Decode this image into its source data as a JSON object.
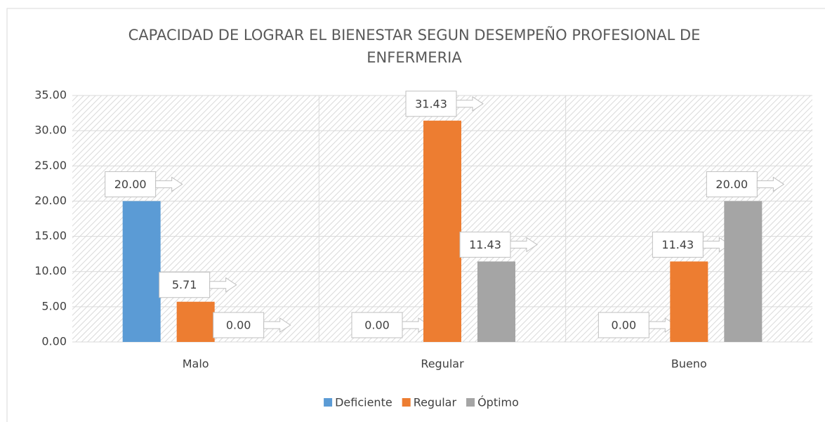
{
  "chart_data": {
    "type": "bar",
    "title": "CAPACIDAD DE LOGRAR EL BIENESTAR SEGUN DESEMPEÑO PROFESIONAL DE ENFERMERIA",
    "categories": [
      "Malo",
      "Regular",
      "Bueno"
    ],
    "series": [
      {
        "name": "Deficiente",
        "color": "#5b9bd5",
        "values": [
          20,
          0,
          0
        ],
        "value_labels": [
          "20.00",
          "0.00",
          "0.00"
        ]
      },
      {
        "name": "Regular",
        "color": "#ed7d31",
        "values": [
          5.71,
          31.43,
          11.43
        ],
        "value_labels": [
          "5.71",
          "31.43",
          "11.43"
        ]
      },
      {
        "name": "Óptimo",
        "color": "#a5a5a5",
        "values": [
          0,
          11.43,
          20
        ],
        "value_labels": [
          "0.00",
          "11.43",
          "20.00"
        ]
      }
    ],
    "ylim": [
      0,
      35
    ],
    "yticks": [
      {
        "value": 0,
        "label": "0.00"
      },
      {
        "value": 5,
        "label": "5.00"
      },
      {
        "value": 10,
        "label": "10.00"
      },
      {
        "value": 15,
        "label": "15.00"
      },
      {
        "value": 20,
        "label": "20.00"
      },
      {
        "value": 25,
        "label": "25.00"
      },
      {
        "value": 30,
        "label": "30.00"
      },
      {
        "value": 35,
        "label": "35.00"
      }
    ],
    "grid": true,
    "legend": "bottom"
  }
}
